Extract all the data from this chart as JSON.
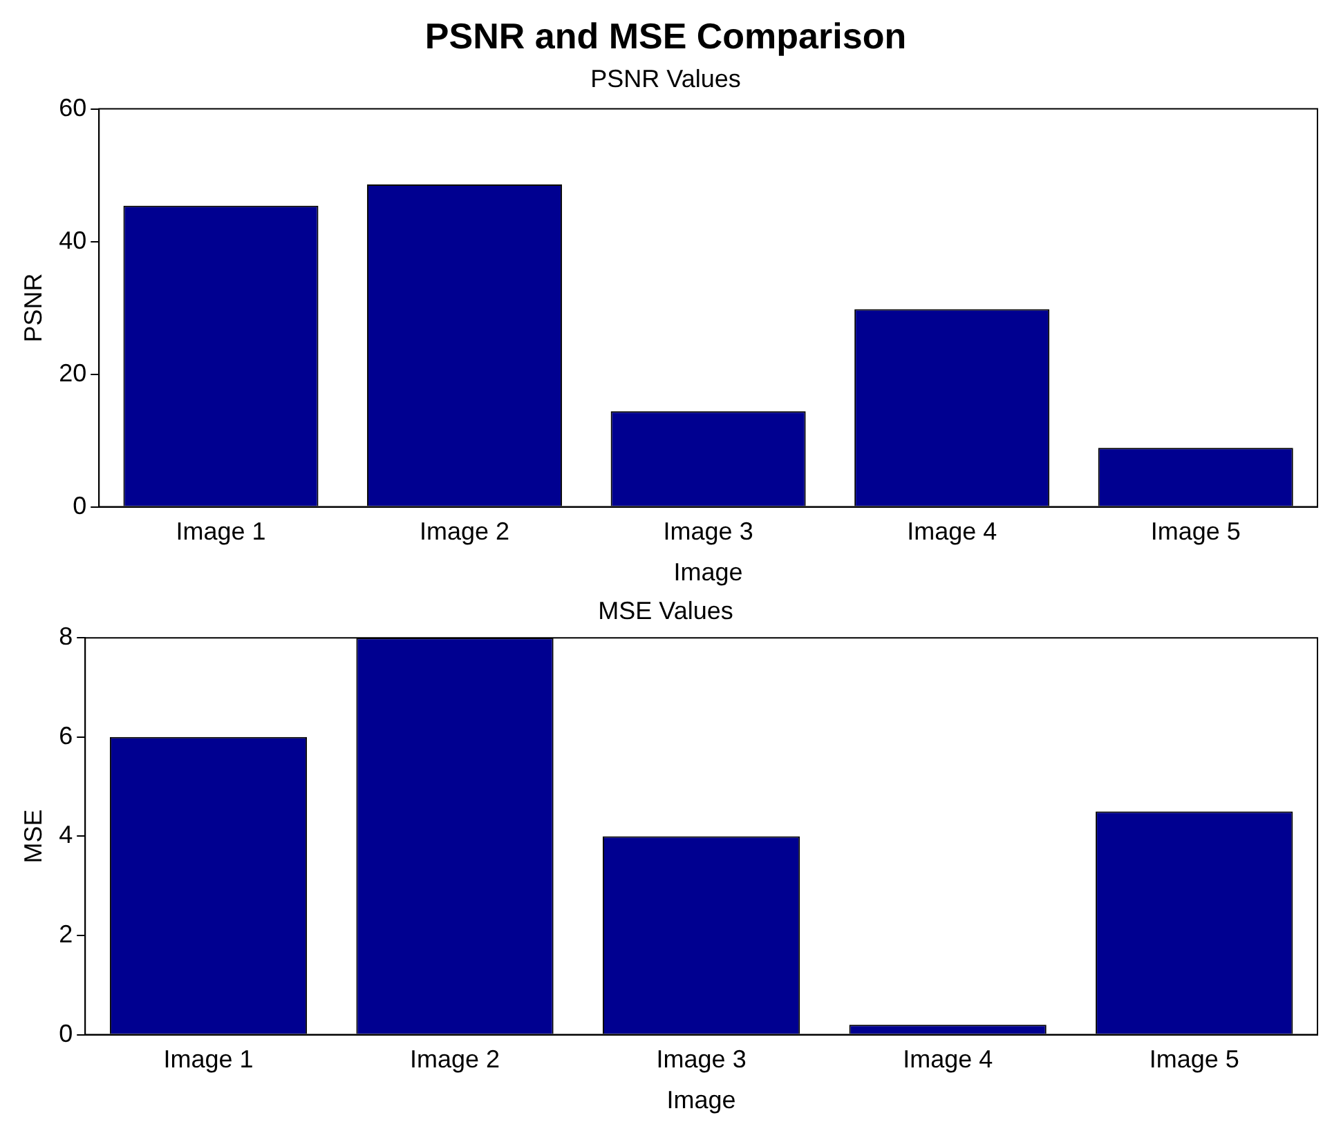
{
  "chart_data": [
    {
      "type": "bar",
      "title": "PSNR and MSE Comparison",
      "subtitle": "PSNR Values",
      "xlabel": "Image",
      "ylabel": "PSNR",
      "categories": [
        "Image 1",
        "Image 2",
        "Image 3",
        "Image 4",
        "Image 5"
      ],
      "values": [
        45.4,
        48.6,
        14.4,
        29.8,
        8.9
      ],
      "color": "#000090",
      "ylim": [
        0,
        60
      ],
      "yticks": [
        0,
        20,
        40,
        60
      ]
    },
    {
      "type": "bar",
      "title": "MSE Values",
      "xlabel": "Image",
      "ylabel": "MSE",
      "categories": [
        "Image 1",
        "Image 2",
        "Image 3",
        "Image 4",
        "Image 5"
      ],
      "values": [
        6.0,
        8.0,
        4.0,
        0.2,
        4.5
      ],
      "color": "#000090",
      "ylim": [
        0,
        8
      ],
      "yticks": [
        0,
        2,
        4,
        6,
        8
      ]
    }
  ]
}
